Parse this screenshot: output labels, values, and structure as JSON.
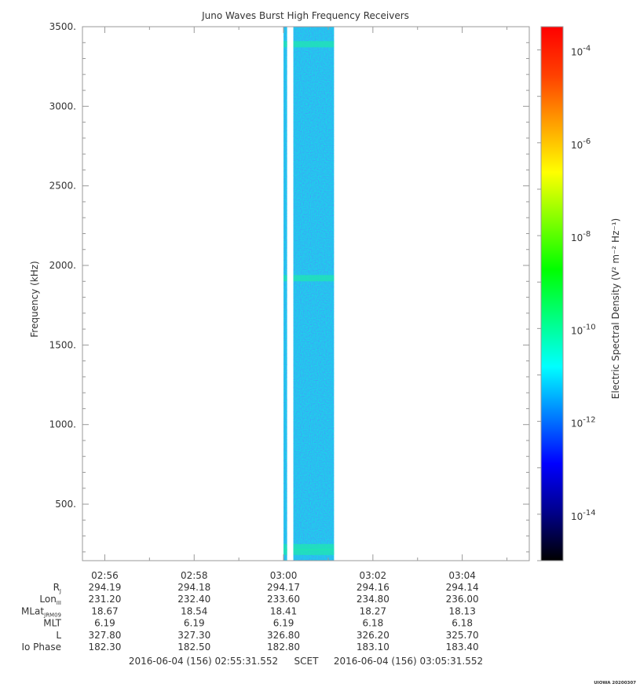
{
  "chart_data": {
    "type": "heatmap",
    "title": "Juno Waves Burst High Frequency Receivers",
    "ylabel": "Frequency (kHz)",
    "yticks": [
      "500.",
      "1000.",
      "1500.",
      "2000.",
      "2500.",
      "3000.",
      "3500."
    ],
    "ytick_values": [
      500,
      1000,
      1500,
      2000,
      2500,
      3000,
      3500
    ],
    "ylim": [
      145,
      3500
    ],
    "xlim_minutes": [
      -4.5,
      5.5
    ],
    "xtick_labels": [
      "02:56",
      "02:58",
      "03:00",
      "03:02",
      "03:04"
    ],
    "xtick_minutes": [
      -4,
      -2,
      0,
      2,
      4
    ],
    "data_blocks": [
      {
        "start_min": 0.0,
        "end_min": 0.08
      },
      {
        "start_min": 0.22,
        "end_min": 1.13
      }
    ],
    "bands_khz": [
      200,
      230,
      1920,
      3390
    ],
    "colorbar": {
      "label": "Electric Spectral Density (V² m⁻² Hz⁻¹)",
      "scale": "log",
      "range_exp": [
        -15,
        -3.5
      ],
      "tick_exponents": [
        -14,
        -12,
        -10,
        -8,
        -6,
        -4
      ],
      "colors": [
        "#000000",
        "#00008b",
        "#0000ff",
        "#0080ff",
        "#00ffff",
        "#00ff80",
        "#00ff00",
        "#80ff00",
        "#ffff00",
        "#ffa000",
        "#ff4000",
        "#ff0000"
      ]
    },
    "ephemeris": {
      "row_labels": [
        "Rj",
        "LonIII",
        "MLatJRM09",
        "MLT",
        "L",
        "Io Phase"
      ],
      "rows": [
        [
          "294.19",
          "294.18",
          "294.17",
          "294.16",
          "294.14"
        ],
        [
          "231.20",
          "232.40",
          "233.60",
          "234.80",
          "236.00"
        ],
        [
          "18.67",
          "18.54",
          "18.41",
          "18.27",
          "18.13"
        ],
        [
          "6.19",
          "6.19",
          "6.19",
          "6.18",
          "6.18"
        ],
        [
          "327.80",
          "327.30",
          "326.80",
          "326.20",
          "325.70"
        ],
        [
          "182.30",
          "182.50",
          "182.80",
          "183.10",
          "183.40"
        ]
      ]
    },
    "time_range": {
      "start": "2016-06-04 (156) 02:55:31.552",
      "label": "SCET",
      "end": "2016-06-04 (156) 03:05:31.552"
    }
  },
  "credit": "UIOWA 20200307"
}
